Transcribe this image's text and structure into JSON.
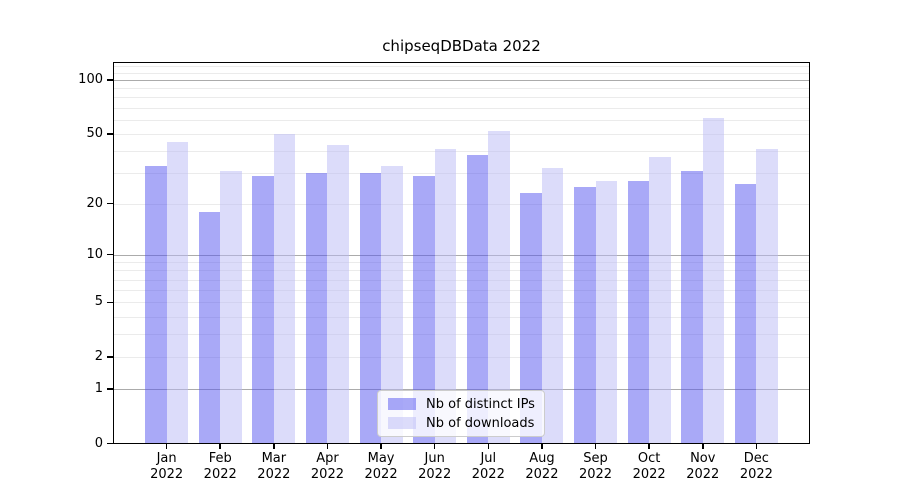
{
  "title": "chipseqDBData 2022",
  "chart_data": {
    "type": "bar",
    "title": "chipseqDBData 2022",
    "categories": [
      "Jan",
      "Feb",
      "Mar",
      "Apr",
      "May",
      "Jun",
      "Jul",
      "Aug",
      "Sep",
      "Oct",
      "Nov",
      "Dec"
    ],
    "year_label": "2022",
    "series": [
      {
        "name": "Nb of distinct IPs",
        "color": "#5454f0",
        "opacity": 0.5,
        "perceived_color": "#a9a9f8",
        "values": [
          33,
          18,
          29,
          30,
          30,
          29,
          38,
          23,
          25,
          27,
          31,
          26
        ]
      },
      {
        "name": "Nb of downloads",
        "color": "#b9b9f5",
        "opacity": 0.5,
        "perceived_color": "#dcdcfa",
        "values": [
          45,
          31,
          50,
          43,
          33,
          41,
          52,
          32,
          27,
          37,
          61,
          41
        ]
      }
    ],
    "y_axis": {
      "scale": "log1p",
      "tick_labels": [
        0,
        1,
        2,
        5,
        10,
        20,
        50,
        100
      ],
      "major_grid": [
        1,
        10,
        100
      ],
      "minor_grid": [
        2,
        3,
        4,
        5,
        6,
        7,
        8,
        9,
        20,
        30,
        40,
        50,
        60,
        70,
        80,
        90,
        110,
        120
      ],
      "ylim": [
        0,
        126
      ]
    },
    "legend_position": "lower center",
    "grid": true
  }
}
